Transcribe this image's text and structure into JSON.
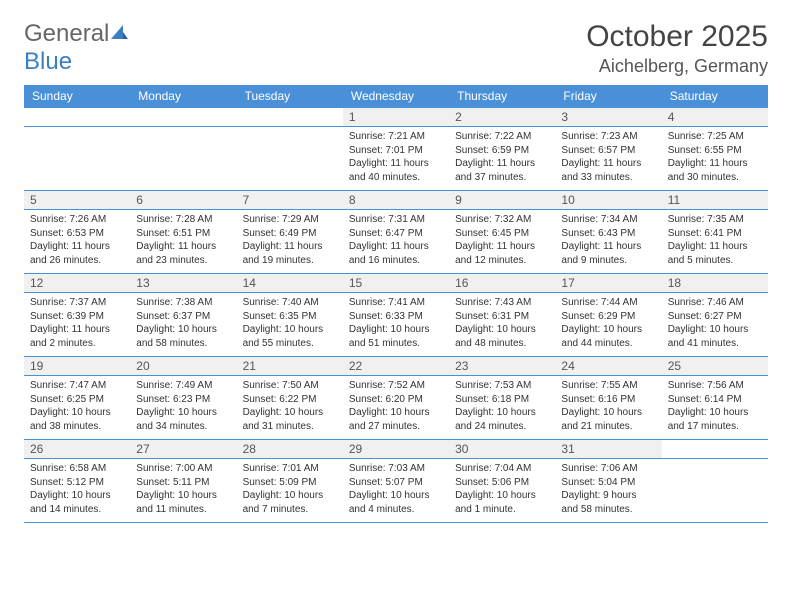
{
  "logo": {
    "part1": "General",
    "part2": "Blue"
  },
  "title": "October 2025",
  "location": "Aichelberg, Germany",
  "colors": {
    "header_bg": "#4a90d9",
    "header_text": "#ffffff",
    "daynum_bg": "#f0f0f0",
    "row_border": "#4a90d9",
    "body_text": "#333333",
    "logo_gray": "#666666",
    "logo_blue": "#3a7fc4"
  },
  "day_headers": [
    "Sunday",
    "Monday",
    "Tuesday",
    "Wednesday",
    "Thursday",
    "Friday",
    "Saturday"
  ],
  "weeks": [
    [
      {
        "n": "",
        "sr": "",
        "ss": "",
        "dl": ""
      },
      {
        "n": "",
        "sr": "",
        "ss": "",
        "dl": ""
      },
      {
        "n": "",
        "sr": "",
        "ss": "",
        "dl": ""
      },
      {
        "n": "1",
        "sr": "Sunrise: 7:21 AM",
        "ss": "Sunset: 7:01 PM",
        "dl": "Daylight: 11 hours and 40 minutes."
      },
      {
        "n": "2",
        "sr": "Sunrise: 7:22 AM",
        "ss": "Sunset: 6:59 PM",
        "dl": "Daylight: 11 hours and 37 minutes."
      },
      {
        "n": "3",
        "sr": "Sunrise: 7:23 AM",
        "ss": "Sunset: 6:57 PM",
        "dl": "Daylight: 11 hours and 33 minutes."
      },
      {
        "n": "4",
        "sr": "Sunrise: 7:25 AM",
        "ss": "Sunset: 6:55 PM",
        "dl": "Daylight: 11 hours and 30 minutes."
      }
    ],
    [
      {
        "n": "5",
        "sr": "Sunrise: 7:26 AM",
        "ss": "Sunset: 6:53 PM",
        "dl": "Daylight: 11 hours and 26 minutes."
      },
      {
        "n": "6",
        "sr": "Sunrise: 7:28 AM",
        "ss": "Sunset: 6:51 PM",
        "dl": "Daylight: 11 hours and 23 minutes."
      },
      {
        "n": "7",
        "sr": "Sunrise: 7:29 AM",
        "ss": "Sunset: 6:49 PM",
        "dl": "Daylight: 11 hours and 19 minutes."
      },
      {
        "n": "8",
        "sr": "Sunrise: 7:31 AM",
        "ss": "Sunset: 6:47 PM",
        "dl": "Daylight: 11 hours and 16 minutes."
      },
      {
        "n": "9",
        "sr": "Sunrise: 7:32 AM",
        "ss": "Sunset: 6:45 PM",
        "dl": "Daylight: 11 hours and 12 minutes."
      },
      {
        "n": "10",
        "sr": "Sunrise: 7:34 AM",
        "ss": "Sunset: 6:43 PM",
        "dl": "Daylight: 11 hours and 9 minutes."
      },
      {
        "n": "11",
        "sr": "Sunrise: 7:35 AM",
        "ss": "Sunset: 6:41 PM",
        "dl": "Daylight: 11 hours and 5 minutes."
      }
    ],
    [
      {
        "n": "12",
        "sr": "Sunrise: 7:37 AM",
        "ss": "Sunset: 6:39 PM",
        "dl": "Daylight: 11 hours and 2 minutes."
      },
      {
        "n": "13",
        "sr": "Sunrise: 7:38 AM",
        "ss": "Sunset: 6:37 PM",
        "dl": "Daylight: 10 hours and 58 minutes."
      },
      {
        "n": "14",
        "sr": "Sunrise: 7:40 AM",
        "ss": "Sunset: 6:35 PM",
        "dl": "Daylight: 10 hours and 55 minutes."
      },
      {
        "n": "15",
        "sr": "Sunrise: 7:41 AM",
        "ss": "Sunset: 6:33 PM",
        "dl": "Daylight: 10 hours and 51 minutes."
      },
      {
        "n": "16",
        "sr": "Sunrise: 7:43 AM",
        "ss": "Sunset: 6:31 PM",
        "dl": "Daylight: 10 hours and 48 minutes."
      },
      {
        "n": "17",
        "sr": "Sunrise: 7:44 AM",
        "ss": "Sunset: 6:29 PM",
        "dl": "Daylight: 10 hours and 44 minutes."
      },
      {
        "n": "18",
        "sr": "Sunrise: 7:46 AM",
        "ss": "Sunset: 6:27 PM",
        "dl": "Daylight: 10 hours and 41 minutes."
      }
    ],
    [
      {
        "n": "19",
        "sr": "Sunrise: 7:47 AM",
        "ss": "Sunset: 6:25 PM",
        "dl": "Daylight: 10 hours and 38 minutes."
      },
      {
        "n": "20",
        "sr": "Sunrise: 7:49 AM",
        "ss": "Sunset: 6:23 PM",
        "dl": "Daylight: 10 hours and 34 minutes."
      },
      {
        "n": "21",
        "sr": "Sunrise: 7:50 AM",
        "ss": "Sunset: 6:22 PM",
        "dl": "Daylight: 10 hours and 31 minutes."
      },
      {
        "n": "22",
        "sr": "Sunrise: 7:52 AM",
        "ss": "Sunset: 6:20 PM",
        "dl": "Daylight: 10 hours and 27 minutes."
      },
      {
        "n": "23",
        "sr": "Sunrise: 7:53 AM",
        "ss": "Sunset: 6:18 PM",
        "dl": "Daylight: 10 hours and 24 minutes."
      },
      {
        "n": "24",
        "sr": "Sunrise: 7:55 AM",
        "ss": "Sunset: 6:16 PM",
        "dl": "Daylight: 10 hours and 21 minutes."
      },
      {
        "n": "25",
        "sr": "Sunrise: 7:56 AM",
        "ss": "Sunset: 6:14 PM",
        "dl": "Daylight: 10 hours and 17 minutes."
      }
    ],
    [
      {
        "n": "26",
        "sr": "Sunrise: 6:58 AM",
        "ss": "Sunset: 5:12 PM",
        "dl": "Daylight: 10 hours and 14 minutes."
      },
      {
        "n": "27",
        "sr": "Sunrise: 7:00 AM",
        "ss": "Sunset: 5:11 PM",
        "dl": "Daylight: 10 hours and 11 minutes."
      },
      {
        "n": "28",
        "sr": "Sunrise: 7:01 AM",
        "ss": "Sunset: 5:09 PM",
        "dl": "Daylight: 10 hours and 7 minutes."
      },
      {
        "n": "29",
        "sr": "Sunrise: 7:03 AM",
        "ss": "Sunset: 5:07 PM",
        "dl": "Daylight: 10 hours and 4 minutes."
      },
      {
        "n": "30",
        "sr": "Sunrise: 7:04 AM",
        "ss": "Sunset: 5:06 PM",
        "dl": "Daylight: 10 hours and 1 minute."
      },
      {
        "n": "31",
        "sr": "Sunrise: 7:06 AM",
        "ss": "Sunset: 5:04 PM",
        "dl": "Daylight: 9 hours and 58 minutes."
      },
      {
        "n": "",
        "sr": "",
        "ss": "",
        "dl": ""
      }
    ]
  ]
}
